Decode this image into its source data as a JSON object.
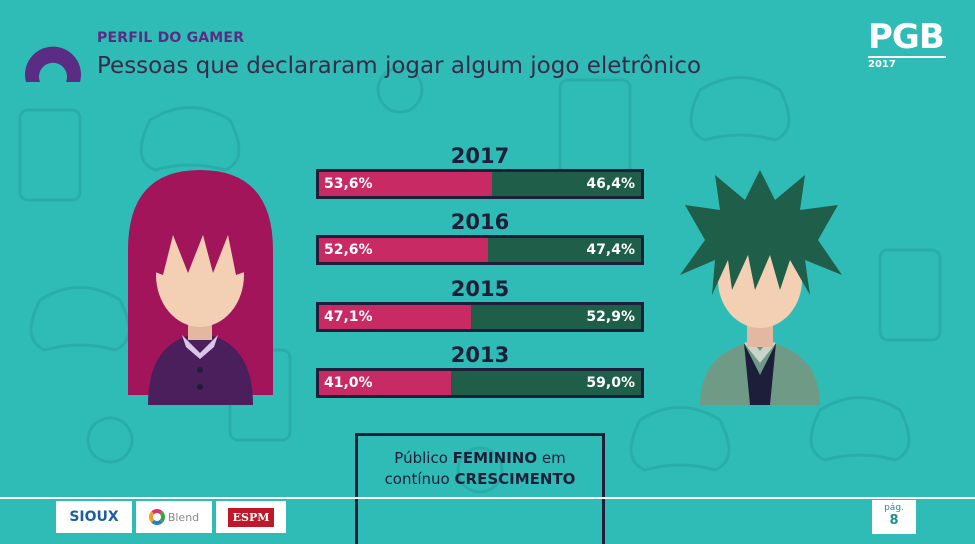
{
  "header": {
    "section": "PERFIL DO GAMER",
    "title": "Pessoas que declararam jogar algum jogo eletrônico"
  },
  "brand": {
    "mark": "PGB",
    "year": "2017"
  },
  "colors": {
    "background": "#2fbcb7",
    "female": "#c82b63",
    "male": "#1f5e48",
    "frame": "#1d1f3a",
    "accent_purple": "#5b2c83"
  },
  "rows": [
    {
      "year": "2017",
      "female_label": "53,6%",
      "male_label": "46,4%"
    },
    {
      "year": "2016",
      "female_label": "52,6%",
      "male_label": "47,4%"
    },
    {
      "year": "2015",
      "female_label": "47,1%",
      "male_label": "52,9%"
    },
    {
      "year": "2013",
      "female_label": "41,0%",
      "male_label": "59,0%"
    }
  ],
  "chart_data": {
    "type": "bar",
    "stacked": true,
    "orientation": "horizontal",
    "categories": [
      "2017",
      "2016",
      "2015",
      "2013"
    ],
    "series": [
      {
        "values": [
          53.6,
          52.6,
          47.1,
          41.0
        ],
        "color": "#c82b63"
      },
      {
        "values": [
          46.4,
          47.4,
          52.9,
          59.0
        ],
        "color": "#1f5e48"
      }
    ],
    "xlim": [
      0,
      100
    ],
    "grid": false
  },
  "callout": {
    "line1_plain": "Público ",
    "line1_bold": "FEMININO",
    "line1_tail": " em",
    "line2_plain": "contínuo ",
    "line2_bold": "CRESCIMENTO"
  },
  "footer": {
    "sponsors": [
      "SIOUX",
      "Blend",
      "ESPM"
    ],
    "page_label": "pág.",
    "page_number": "8"
  }
}
